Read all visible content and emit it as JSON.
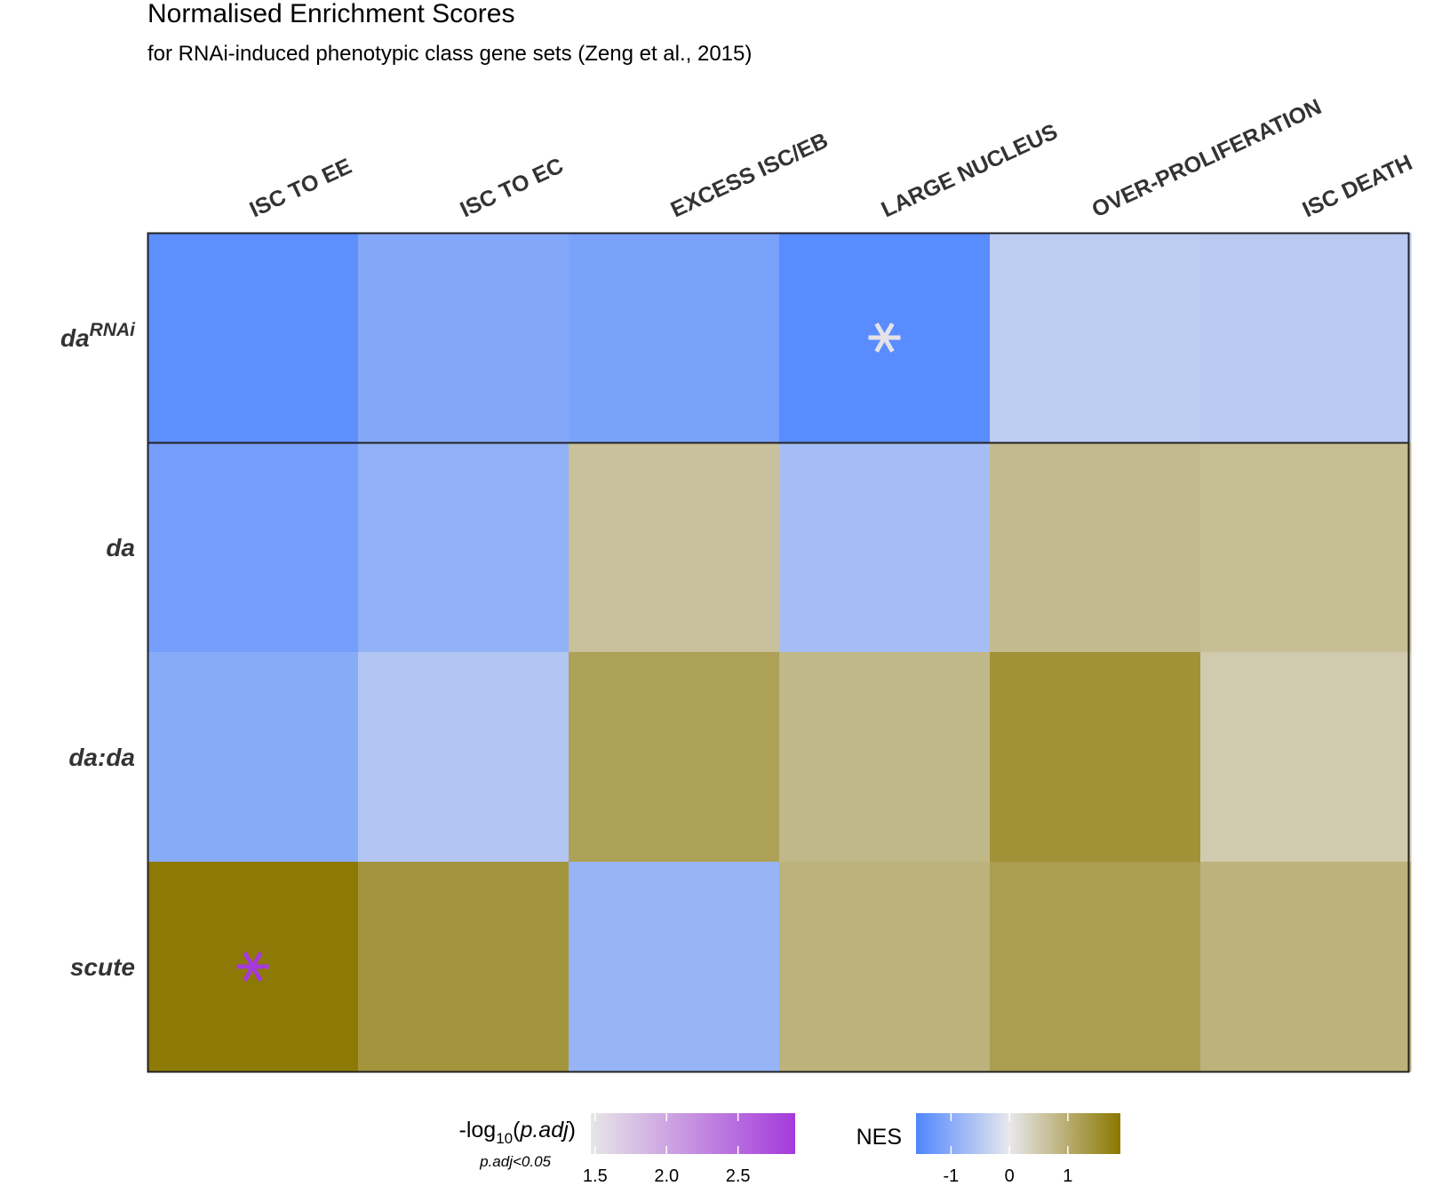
{
  "chart_data": {
    "type": "heatmap",
    "title": "Normalised Enrichment Scores",
    "subtitle": "for RNAi-induced phenotypic class gene sets (Zeng et al., 2015)",
    "columns": [
      "ISC TO EE",
      "ISC TO EC",
      "EXCESS ISC/EB",
      "LARGE NUCLEUS",
      "OVER-PROLIFERATION",
      "ISC DEATH"
    ],
    "rows": [
      {
        "label": "da",
        "superscript": "RNAi"
      },
      {
        "label": "da",
        "superscript": ""
      },
      {
        "label": "da:da",
        "superscript": ""
      },
      {
        "label": "scute",
        "superscript": ""
      }
    ],
    "nes": [
      [
        -1.45,
        -1.05,
        -1.15,
        -1.5,
        -0.45,
        -0.5
      ],
      [
        -1.2,
        -0.9,
        0.65,
        -0.7,
        0.75,
        0.7
      ],
      [
        -1.0,
        -0.55,
        1.2,
        0.8,
        1.45,
        0.5
      ],
      [
        1.85,
        1.4,
        -0.85,
        0.9,
        1.25,
        0.9
      ]
    ],
    "significant": [
      {
        "row": 0,
        "col": 3,
        "neg_log10_padj": 1.5
      },
      {
        "row": 3,
        "col": 0,
        "neg_log10_padj": 2.9
      }
    ],
    "legend_padj": {
      "title_prefix": "-log",
      "title_sub": "10",
      "title_arg": "p.adj",
      "subtitle": "p.adj<0.05",
      "range": [
        1.47,
        2.9
      ],
      "ticks": [
        "1.5",
        "2.0",
        "2.5"
      ],
      "tick_values": [
        1.5,
        2.0,
        2.5
      ],
      "color_low": "#e6e6e6",
      "color_high": "#a43adb"
    },
    "legend_nes": {
      "title": "NES",
      "range": [
        -1.6,
        1.9
      ],
      "ticks": [
        "-1",
        "0",
        "1"
      ],
      "tick_values": [
        -1,
        0,
        1
      ],
      "color_low": "#4f86ff",
      "color_mid": "#e8e8ec",
      "color_high": "#8b7700"
    }
  }
}
